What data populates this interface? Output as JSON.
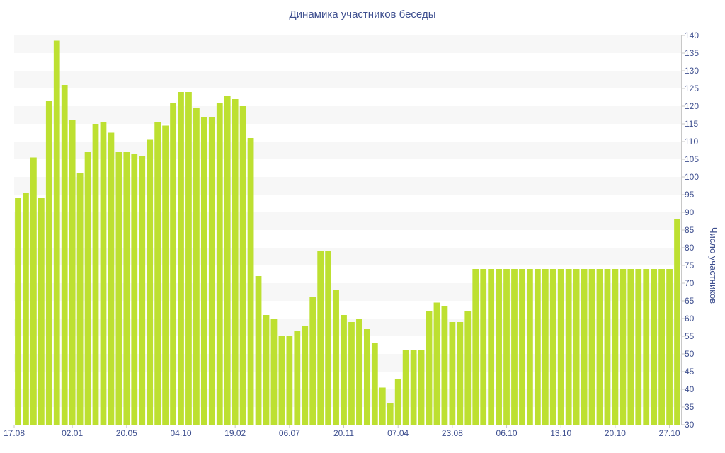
{
  "chart_data": {
    "type": "bar",
    "title": "Динамика участников беседы",
    "xlabel": "",
    "ylabel": "Число участников",
    "ylim": [
      30,
      140
    ],
    "y_ticks": [
      30,
      35,
      40,
      45,
      50,
      55,
      60,
      65,
      70,
      75,
      80,
      85,
      90,
      95,
      100,
      105,
      110,
      115,
      120,
      125,
      130,
      135,
      140
    ],
    "x_tick_labels": [
      "17.08",
      "02.01",
      "20.05",
      "04.10",
      "19.02",
      "06.07",
      "20.11",
      "07.04",
      "23.08",
      "06.10",
      "13.10",
      "20.10",
      "27.10"
    ],
    "x_tick_bar_index": [
      0,
      7,
      14,
      21,
      28,
      35,
      42,
      49,
      56,
      63,
      70,
      77,
      84
    ],
    "grid": "horizontal-bands",
    "legend": "none",
    "colors": {
      "bar": "#bde031",
      "band": "#f7f7f7",
      "text": "#3e4f8f",
      "axis": "#c8c8c8"
    },
    "values": [
      94,
      95.5,
      105.5,
      94,
      121.5,
      138.5,
      126,
      116,
      101,
      107,
      115,
      115.5,
      112.5,
      107,
      107,
      106.5,
      106,
      110.5,
      115.5,
      114.5,
      121,
      124,
      124,
      119.5,
      117,
      117,
      121,
      123,
      122,
      120,
      111,
      72,
      61,
      60,
      55,
      55,
      56.5,
      58,
      66,
      79,
      79,
      68,
      61,
      59,
      60,
      57,
      53,
      40.5,
      36,
      43,
      51,
      51,
      51,
      62,
      64.5,
      63.5,
      59,
      59,
      62,
      74,
      74,
      74,
      74,
      74,
      74,
      74,
      74,
      74,
      74,
      74,
      74,
      74,
      74,
      74,
      74,
      74,
      74,
      74,
      74,
      74,
      74,
      74,
      74,
      74,
      74,
      88
    ]
  }
}
